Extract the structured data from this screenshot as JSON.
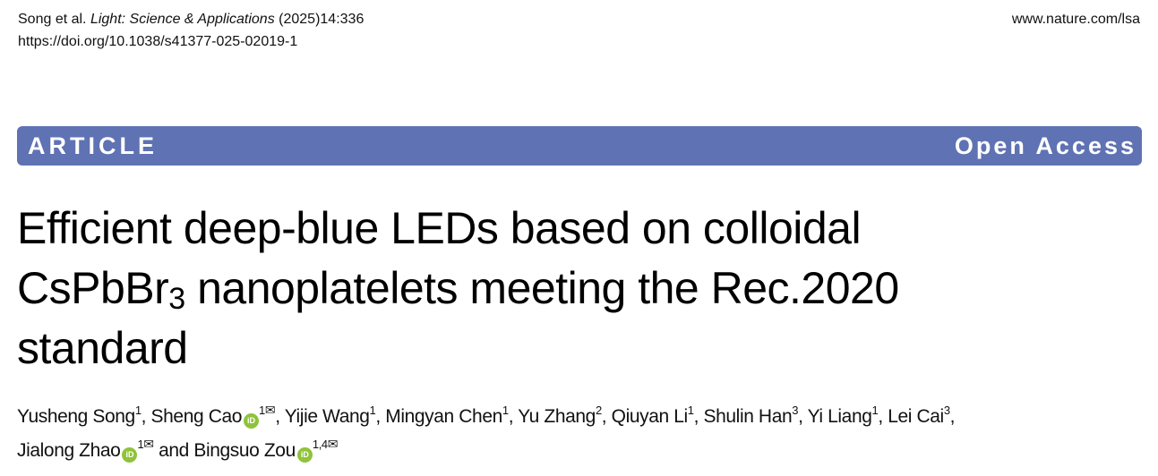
{
  "header": {
    "citation_authors": "Song et al. ",
    "journal": "Light: Science & Applications",
    "citation_rest": " (2025)14:336",
    "doi": "https://doi.org/10.1038/s41377-025-02019-1",
    "site": "www.nature.com/lsa"
  },
  "banner": {
    "type": "ARTICLE",
    "access": "Open Access",
    "color": "#5f72b3"
  },
  "title": {
    "line1": "Efficient deep-blue LEDs based on colloidal",
    "line2a": "CsPbBr",
    "line2sub": "3",
    "line2b": " nanoplatelets meeting the Rec.2020",
    "line3": "standard"
  },
  "authors": [
    {
      "name": "Yusheng Song",
      "aff": "1"
    },
    {
      "name": "Sheng Cao",
      "aff": "1",
      "orcid": true,
      "corresponding": true
    },
    {
      "name": "Yijie Wang",
      "aff": "1"
    },
    {
      "name": "Mingyan Chen",
      "aff": "1"
    },
    {
      "name": "Yu Zhang",
      "aff": "2"
    },
    {
      "name": "Qiuyan Li",
      "aff": "1"
    },
    {
      "name": "Shulin Han",
      "aff": "3"
    },
    {
      "name": "Yi Liang",
      "aff": "1"
    },
    {
      "name": "Lei Cai",
      "aff": "3"
    },
    {
      "name": "Jialong Zhao",
      "aff": "1",
      "orcid": true,
      "corresponding": true
    },
    {
      "name": "Bingsuo Zou",
      "aff": "1,4",
      "orcid": true,
      "corresponding": true
    }
  ],
  "author_sep": ", ",
  "author_and": " and ",
  "orcid_label": "iD",
  "mail_icon": "✉",
  "orcid_color": "#8fc33a"
}
